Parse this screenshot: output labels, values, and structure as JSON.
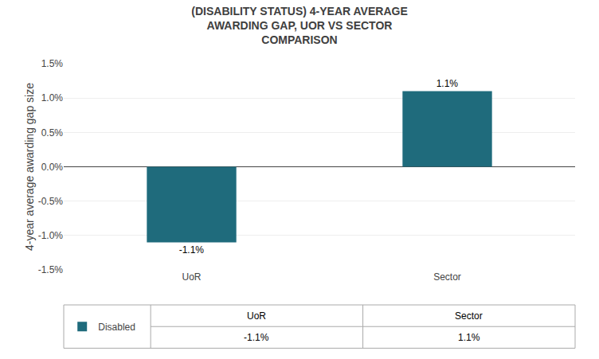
{
  "chart_data": {
    "type": "bar",
    "title": "(DISABILITY STATUS) 4-YEAR AVERAGE\nAWARDING GAP, UOR VS SECTOR\nCOMPARISON",
    "ylabel": "4-year average awarding gap size",
    "categories": [
      "UoR",
      "Sector"
    ],
    "series": [
      {
        "name": "Disabled",
        "color": "#1F6B7C",
        "values": [
          -1.1,
          1.1
        ],
        "value_labels": [
          "-1.1%",
          "1.1%"
        ]
      }
    ],
    "ylim": [
      -1.5,
      1.5
    ],
    "yticks": [
      {
        "value": -1.5,
        "label": "-1.5%"
      },
      {
        "value": -1.0,
        "label": "-1.0%"
      },
      {
        "value": -0.5,
        "label": "-0.5%"
      },
      {
        "value": 0.0,
        "label": "0.0%"
      },
      {
        "value": 0.5,
        "label": "0.5%"
      },
      {
        "value": 1.0,
        "label": "1.0%"
      },
      {
        "value": 1.5,
        "label": "1.5%"
      }
    ],
    "grid": true,
    "data_labels": true,
    "legend": "bottom"
  }
}
